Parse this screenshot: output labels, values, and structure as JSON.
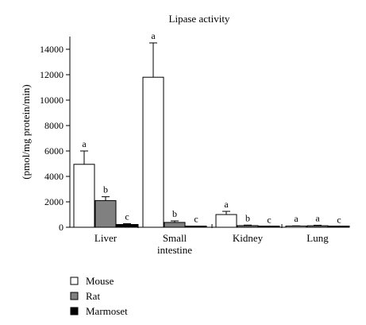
{
  "chart_data": {
    "type": "bar",
    "title": "Lipase activity",
    "ylabel": "(pmol/mg protein/min)",
    "xlabel": "",
    "ylim": [
      0,
      15000
    ],
    "yticks": [
      0,
      2000,
      4000,
      6000,
      8000,
      10000,
      12000,
      14000
    ],
    "categories": [
      {
        "lines": [
          "Liver"
        ]
      },
      {
        "lines": [
          "Small",
          "intestine"
        ]
      },
      {
        "lines": [
          "Kidney"
        ]
      },
      {
        "lines": [
          "Lung"
        ]
      }
    ],
    "series": [
      {
        "name": "Mouse",
        "color": "#ffffff",
        "values": [
          4950,
          11800,
          1000,
          80
        ],
        "errors": [
          1050,
          2700,
          250,
          30
        ],
        "labels": [
          "a",
          "a",
          "a",
          "a"
        ]
      },
      {
        "name": "Rat",
        "color": "#808080",
        "values": [
          2100,
          380,
          130,
          120
        ],
        "errors": [
          300,
          120,
          40,
          40
        ],
        "labels": [
          "b",
          "b",
          "b",
          "a"
        ]
      },
      {
        "name": "Marmoset",
        "color": "#000000",
        "values": [
          220,
          60,
          30,
          20
        ],
        "errors": [
          60,
          20,
          15,
          10
        ],
        "labels": [
          "c",
          "c",
          "c",
          "c"
        ]
      }
    ],
    "legend_position": "bottom-left",
    "grid": false
  }
}
